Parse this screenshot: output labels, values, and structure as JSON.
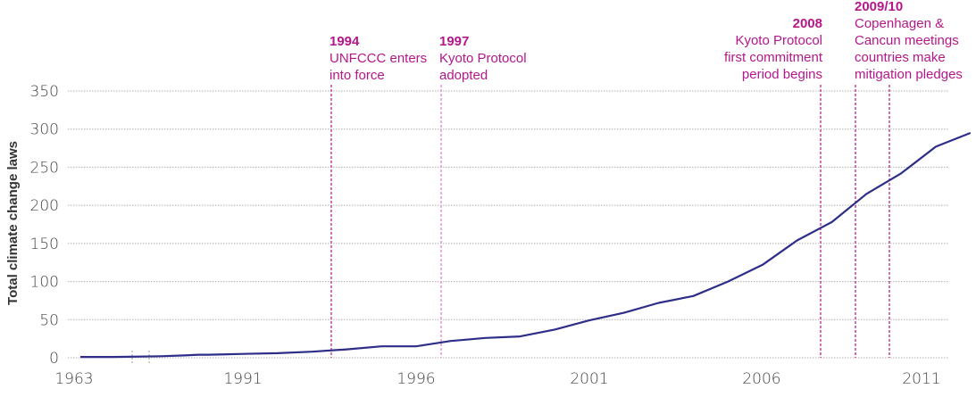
{
  "chart_data": {
    "type": "line",
    "title": "",
    "xlabel": "",
    "ylabel": "Total climate change laws",
    "ylim": [
      0,
      350
    ],
    "yticks": [
      0,
      50,
      100,
      150,
      200,
      250,
      300,
      350
    ],
    "xtick_labels": [
      "1963",
      "1991",
      "1996",
      "2001",
      "2006",
      "2011"
    ],
    "grid": "horizontal dotted",
    "axis_break": "between 1963 and 1991",
    "series": [
      {
        "name": "Total climate change laws",
        "color": "#2e2d88",
        "x": [
          1963,
          1970,
          1980,
          1985,
          1988,
          1990,
          1991,
          1992,
          1993,
          1994,
          1995,
          1996,
          1997,
          1998,
          1999,
          2000,
          2001,
          2002,
          2003,
          2004,
          2005,
          2006,
          2007,
          2008,
          2009,
          2010,
          2011,
          2012
        ],
        "values": [
          1,
          1,
          2,
          3,
          4,
          4,
          5,
          6,
          8,
          11,
          15,
          15,
          22,
          26,
          28,
          37,
          49,
          59,
          72,
          81,
          100,
          122,
          154,
          178,
          215,
          242,
          277,
          295
        ]
      }
    ],
    "annotations": [
      {
        "year": "1994",
        "lines": [
          "UNFCCC enters",
          "into force"
        ],
        "align": "left"
      },
      {
        "year": "1997",
        "lines": [
          "Kyoto Protocol",
          "adopted"
        ],
        "align": "left"
      },
      {
        "year": "2008",
        "lines": [
          "Kyoto Protocol",
          "first commitment",
          "period begins"
        ],
        "align": "right"
      },
      {
        "year": "2009/10",
        "lines": [
          "Copenhagen &",
          "Cancun meetings",
          "countries make",
          "mitigation pledges"
        ],
        "align": "left"
      }
    ]
  },
  "colors": {
    "line": "#2e2d88",
    "annotation": "#b5178a",
    "annotation_light": "#e07bc5",
    "grid": "#b0b0b0",
    "tick_text": "#444444"
  }
}
